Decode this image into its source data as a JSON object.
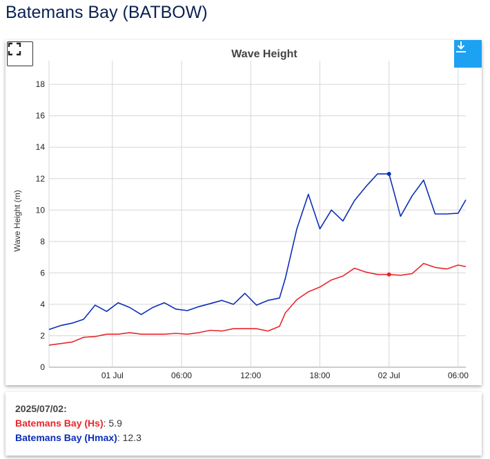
{
  "page": {
    "title": "Batemans Bay (BATBOW)"
  },
  "icons": {
    "fullscreen": "fullscreen-icon",
    "download": "download-icon"
  },
  "chart_data": {
    "type": "line",
    "title": "Wave Height",
    "ylabel": "Wave Height (m)",
    "xlabel": "",
    "ylim": [
      0,
      19.5
    ],
    "yticks": [
      0,
      2,
      4,
      6,
      8,
      10,
      12,
      14,
      16,
      18
    ],
    "xlim": [
      "2025-06-30T18:30",
      "2025-07-02T06:40"
    ],
    "xticks": [
      {
        "t": "2025-07-01T00:00",
        "label": "01 Jul"
      },
      {
        "t": "2025-07-01T06:00",
        "label": "06:00"
      },
      {
        "t": "2025-07-01T12:00",
        "label": "12:00"
      },
      {
        "t": "2025-07-01T18:00",
        "label": "18:00"
      },
      {
        "t": "2025-07-02T00:00",
        "label": "02 Jul"
      },
      {
        "t": "2025-07-02T06:00",
        "label": "06:00"
      }
    ],
    "grid": true,
    "x": [
      "2025-06-30T18:30",
      "2025-06-30T19:30",
      "2025-06-30T20:30",
      "2025-06-30T21:30",
      "2025-06-30T22:30",
      "2025-06-30T23:30",
      "2025-07-01T00:30",
      "2025-07-01T01:30",
      "2025-07-01T02:30",
      "2025-07-01T03:30",
      "2025-07-01T04:30",
      "2025-07-01T05:30",
      "2025-07-01T06:30",
      "2025-07-01T07:30",
      "2025-07-01T08:30",
      "2025-07-01T09:30",
      "2025-07-01T10:30",
      "2025-07-01T11:30",
      "2025-07-01T12:30",
      "2025-07-01T13:30",
      "2025-07-01T14:30",
      "2025-07-01T15:00",
      "2025-07-01T16:00",
      "2025-07-01T17:00",
      "2025-07-01T18:00",
      "2025-07-01T19:00",
      "2025-07-01T20:00",
      "2025-07-01T21:00",
      "2025-07-01T22:00",
      "2025-07-01T23:00",
      "2025-07-02T00:00",
      "2025-07-02T01:00",
      "2025-07-02T02:00",
      "2025-07-02T03:00",
      "2025-07-02T04:00",
      "2025-07-02T05:00",
      "2025-07-02T06:00",
      "2025-07-02T06:40"
    ],
    "series": [
      {
        "name": "Batemans Bay (Hs)",
        "color": "#e8262b",
        "values": [
          1.4,
          1.5,
          1.6,
          1.9,
          1.95,
          2.1,
          2.1,
          2.2,
          2.1,
          2.1,
          2.1,
          2.15,
          2.1,
          2.2,
          2.35,
          2.3,
          2.45,
          2.45,
          2.45,
          2.3,
          2.6,
          3.45,
          4.3,
          4.8,
          5.1,
          5.55,
          5.8,
          6.3,
          6.05,
          5.9,
          5.9,
          5.85,
          5.95,
          6.6,
          6.35,
          6.25,
          6.5,
          6.4
        ]
      },
      {
        "name": "Batemans Bay (Hmax)",
        "color": "#0a2db8",
        "values": [
          2.4,
          2.65,
          2.8,
          3.05,
          3.95,
          3.55,
          4.1,
          3.8,
          3.35,
          3.8,
          4.1,
          3.7,
          3.6,
          3.85,
          4.05,
          4.25,
          4.0,
          4.7,
          3.95,
          4.25,
          4.4,
          5.65,
          8.8,
          11.0,
          8.8,
          10.0,
          9.3,
          10.6,
          11.5,
          12.3,
          12.3,
          9.6,
          10.9,
          11.9,
          9.75,
          9.75,
          9.8,
          10.65
        ]
      }
    ],
    "highlight_x": "2025-07-02T00:00"
  },
  "tooltip": {
    "date": "2025/07/02:",
    "rows": [
      {
        "name": "Batemans Bay (Hs)",
        "value": "5.9",
        "color": "#e8262b"
      },
      {
        "name": "Batemans Bay (Hmax)",
        "value": "12.3",
        "color": "#0a2db8"
      }
    ]
  }
}
